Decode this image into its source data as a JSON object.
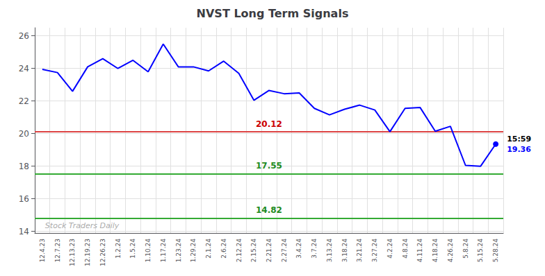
{
  "chart_data": {
    "type": "line",
    "title": "NVST Long Term Signals",
    "categories": [
      "12.4.23",
      "12.7.23",
      "12.13.23",
      "12.19.23",
      "12.26.23",
      "1.2.24",
      "1.5.24",
      "1.10.24",
      "1.17.24",
      "1.23.24",
      "1.29.24",
      "2.1.24",
      "2.6.24",
      "2.12.24",
      "2.15.24",
      "2.21.24",
      "2.27.24",
      "3.4.24",
      "3.7.24",
      "3.13.24",
      "3.18.24",
      "3.21.24",
      "3.27.24",
      "4.2.24",
      "4.8.24",
      "4.11.24",
      "4.18.24",
      "4.26.24",
      "5.8.24",
      "5.15.24",
      "5.28.24"
    ],
    "values": [
      23.95,
      23.75,
      22.6,
      24.1,
      24.6,
      24.0,
      24.5,
      23.8,
      25.5,
      24.1,
      24.1,
      23.85,
      24.45,
      23.7,
      22.05,
      22.65,
      22.45,
      22.5,
      21.55,
      21.15,
      21.5,
      21.75,
      21.45,
      20.12,
      21.55,
      21.6,
      20.15,
      20.45,
      18.05,
      18.0,
      19.36
    ],
    "color": "#0000ff",
    "hlines": [
      {
        "value": 20.12,
        "label": "20.12",
        "color": "#dd4444",
        "label_color": "#cc0000"
      },
      {
        "value": 17.55,
        "label": "17.55",
        "color": "#33aa33",
        "label_color": "#228b22"
      },
      {
        "value": 14.82,
        "label": "14.82",
        "color": "#33aa33",
        "label_color": "#228b22"
      }
    ],
    "annotations": {
      "time": "15:59",
      "price": "19.36",
      "price_color": "#0000ff",
      "watermark": "Stock Traders Daily",
      "watermark_color": "#999999"
    },
    "ylim": [
      13.9,
      26.5
    ],
    "yticks": [
      14,
      16,
      18,
      20,
      22,
      24,
      26
    ],
    "grid": true
  }
}
